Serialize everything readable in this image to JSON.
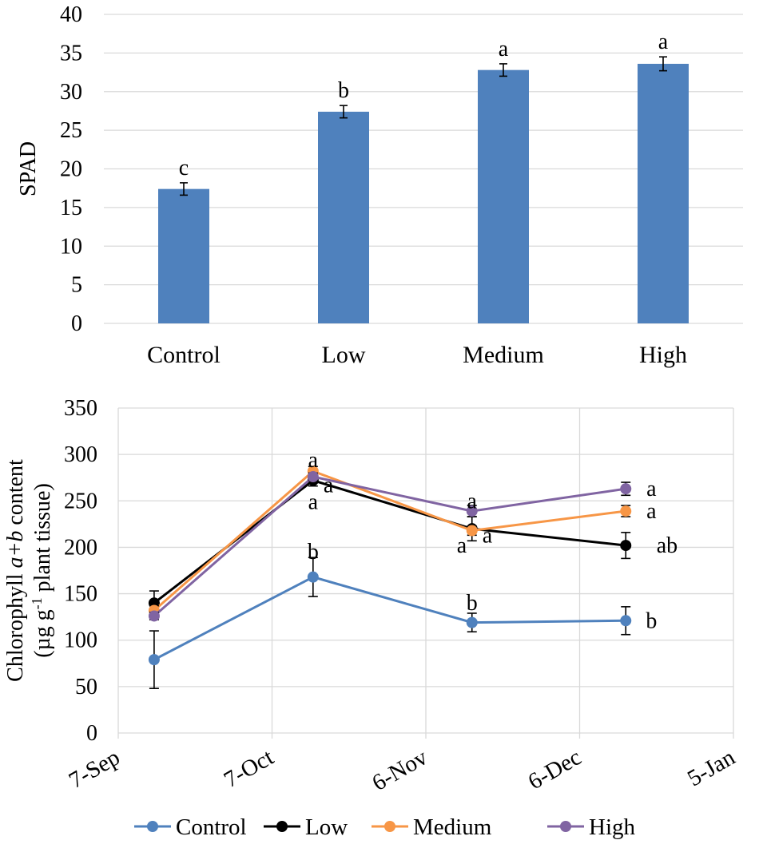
{
  "chart_data": [
    {
      "type": "bar",
      "title": "",
      "xlabel": "",
      "ylabel": "SPAD",
      "ylim": [
        0,
        40
      ],
      "yticks": [
        0,
        5,
        10,
        15,
        20,
        25,
        30,
        35,
        40
      ],
      "grid": true,
      "categories": [
        "Control",
        "Low",
        "Medium",
        "High"
      ],
      "values": [
        17.4,
        27.4,
        32.8,
        33.6
      ],
      "errors": [
        0.8,
        0.8,
        0.8,
        0.9
      ],
      "labels": [
        "c",
        "b",
        "a",
        "a"
      ],
      "color": "#4f81bd"
    },
    {
      "type": "line",
      "title": "",
      "ylabel": "Chlorophyll a+b content (µg g-1 plant tissue)",
      "ylabel_parts": {
        "line1_prefix": "Chlorophyll ",
        "line1_italic": "a+b",
        "line1_suffix": " content",
        "line2_prefix": "(µg g",
        "line2_sup": "-1",
        "line2_suffix": " plant tissue)"
      },
      "ylim": [
        0,
        350
      ],
      "yticks": [
        0,
        50,
        100,
        150,
        200,
        250,
        300,
        350
      ],
      "x_ticks": [
        {
          "day": 0,
          "label": "7-Sep"
        },
        {
          "day": 30,
          "label": "7-Oct"
        },
        {
          "day": 60,
          "label": "6-Nov"
        },
        {
          "day": 90,
          "label": "6-Dec"
        },
        {
          "day": 120,
          "label": "5-Jan"
        }
      ],
      "x_range_days": [
        0,
        120
      ],
      "x_days": [
        7,
        38,
        69,
        99
      ],
      "legend_position": "bottom",
      "series": [
        {
          "name": "Control",
          "color": "#4f81bd",
          "values": [
            79,
            168,
            119,
            121
          ],
          "errors": [
            31,
            21,
            10,
            15
          ]
        },
        {
          "name": "Low",
          "color": "#000000",
          "values": [
            140,
            272,
            220,
            202
          ],
          "errors": [
            13,
            6,
            13,
            14
          ]
        },
        {
          "name": "Medium",
          "color": "#f79646",
          "values": [
            132,
            282,
            218,
            239
          ],
          "errors": [
            5,
            5,
            5,
            6
          ]
        },
        {
          "name": "High",
          "color": "#8064a2",
          "values": [
            126,
            276,
            239,
            263
          ],
          "errors": [
            4,
            4,
            6,
            7
          ]
        }
      ],
      "annotations": [
        {
          "text": "a",
          "day": 38,
          "value": 294
        },
        {
          "text": "a",
          "day": 38,
          "value": 249
        },
        {
          "text": "a",
          "day": 41,
          "value": 267
        },
        {
          "text": "b",
          "day": 38,
          "value": 195
        },
        {
          "text": "a",
          "day": 69,
          "value": 250
        },
        {
          "text": "a",
          "day": 72,
          "value": 213
        },
        {
          "text": "a",
          "day": 67,
          "value": 202
        },
        {
          "text": "b",
          "day": 69,
          "value": 140
        },
        {
          "text": "a",
          "day": 104,
          "value": 263
        },
        {
          "text": "a",
          "day": 104,
          "value": 239
        },
        {
          "text": "ab",
          "day": 105,
          "value": 202
        },
        {
          "text": "b",
          "day": 104,
          "value": 121
        }
      ]
    }
  ]
}
